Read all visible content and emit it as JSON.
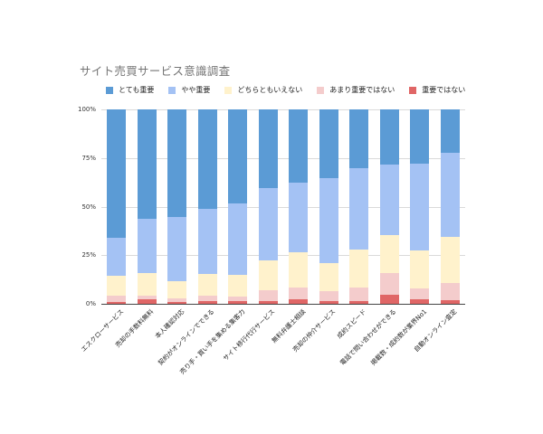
{
  "chart_data": {
    "type": "bar",
    "stacked": "percent",
    "title": "サイト売買サービス意識調査",
    "xlabel": "",
    "ylabel": "",
    "ylim": [
      0,
      100
    ],
    "y_ticks": [
      "0%",
      "25%",
      "50%",
      "75%",
      "100%"
    ],
    "grid": true,
    "legend_position": "top",
    "categories": [
      "エスクローサービス",
      "売却の手数料無料",
      "本人確認対応",
      "契約がオンラインでできる",
      "売り手・買い手を集める集客力",
      "サイト移行代行サービス",
      "無料弁護士相談",
      "売却の仲介サービス",
      "成約スピード",
      "電話で問い合わせができる",
      "掲載数・成約数が業界No1",
      "自動オンライン査定"
    ],
    "series": [
      {
        "name": "とても重要",
        "color": "#5b9bd5",
        "values": [
          66,
          56.5,
          55.5,
          51,
          48.5,
          40.5,
          37.5,
          35.5,
          30,
          28.5,
          28,
          22.5
        ]
      },
      {
        "name": "やや重要",
        "color": "#a4c2f4",
        "values": [
          19.5,
          27.5,
          33,
          33.5,
          36.5,
          37,
          36,
          43.5,
          42,
          36,
          44.5,
          43
        ]
      },
      {
        "name": "どちらともいえない",
        "color": "#fff2cc",
        "values": [
          10.5,
          12,
          8.5,
          11.5,
          11.5,
          15.5,
          18,
          14.5,
          19.5,
          19.5,
          19.5,
          24
        ]
      },
      {
        "name": "あまり重要ではない",
        "color": "#f4cccc",
        "values": [
          3,
          1.5,
          2,
          2.5,
          2,
          5.5,
          6,
          5,
          7,
          11.5,
          5.5,
          8.5
        ]
      },
      {
        "name": "重要ではない",
        "color": "#e06666",
        "values": [
          1,
          2.5,
          1,
          1.5,
          1.5,
          1.5,
          2.5,
          1.5,
          1.5,
          4.5,
          2.5,
          2
        ]
      }
    ]
  }
}
